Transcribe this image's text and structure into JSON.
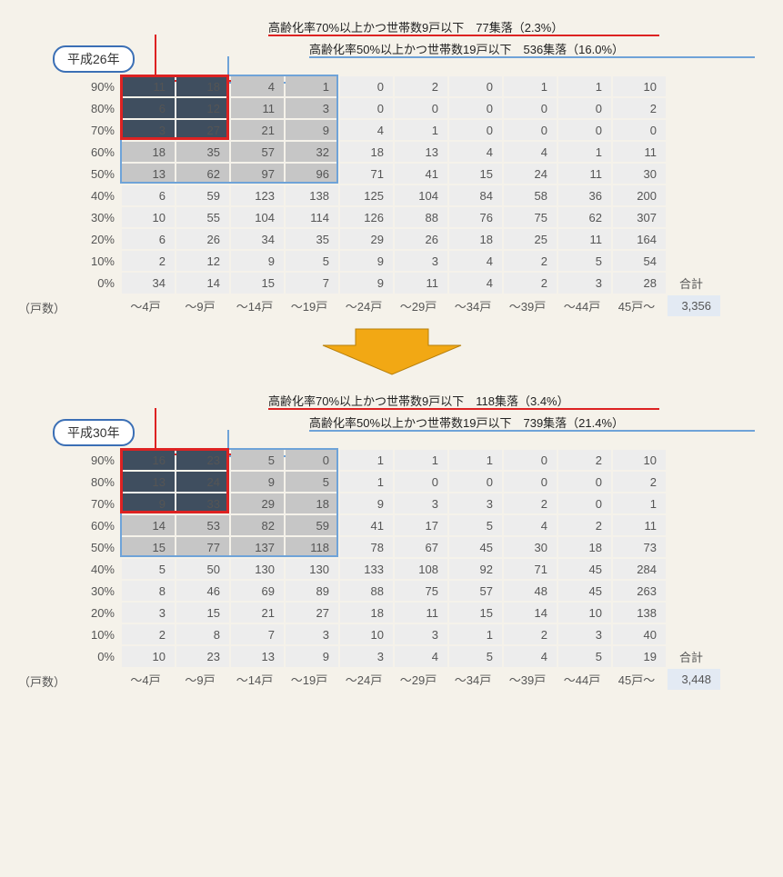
{
  "colors": {
    "page_bg": "#f5f2ea",
    "cell_light": "#ededed",
    "cell_mid": "#c6c6c6",
    "cell_dark": "#3f4e5f",
    "cell_dark_text": "#ffffff",
    "text": "#555555",
    "badge_border": "#3b6fb5",
    "red": "#d22222",
    "blue": "#6fa3d8",
    "total_bg": "#e3eaf3",
    "arrow_fill": "#f2a814",
    "arrow_stroke": "#b77f0a"
  },
  "shared": {
    "row_labels": [
      "90%",
      "80%",
      "70%",
      "60%",
      "50%",
      "40%",
      "30%",
      "20%",
      "10%",
      "0%"
    ],
    "col_labels": [
      "～4戸",
      "～9戸",
      "～14戸",
      "～19戸",
      "～24戸",
      "～29戸",
      "～34戸",
      "～39戸",
      "～44戸",
      "45戸～"
    ],
    "axis_label": "（戸数）",
    "total_label": "合計",
    "highlight_red": {
      "row_start": 0,
      "row_end": 2,
      "col_start": 0,
      "col_end": 1
    },
    "highlight_blue": {
      "row_start": 0,
      "row_end": 4,
      "col_start": 0,
      "col_end": 3
    }
  },
  "panels": [
    {
      "year": "平成26年",
      "annot_red": "高齢化率70%以上かつ世帯数9戸以下　77集落（2.3%）",
      "annot_blue": "高齢化率50%以上かつ世帯数19戸以下　536集落（16.0%）",
      "total": "3,356",
      "rows": [
        [
          11,
          18,
          4,
          1,
          0,
          2,
          0,
          1,
          1,
          10
        ],
        [
          6,
          12,
          11,
          3,
          0,
          0,
          0,
          0,
          0,
          2
        ],
        [
          3,
          27,
          21,
          9,
          4,
          1,
          0,
          0,
          0,
          0
        ],
        [
          18,
          35,
          57,
          32,
          18,
          13,
          4,
          4,
          1,
          11
        ],
        [
          13,
          62,
          97,
          96,
          71,
          41,
          15,
          24,
          11,
          30
        ],
        [
          6,
          59,
          123,
          138,
          125,
          104,
          84,
          58,
          36,
          200
        ],
        [
          10,
          55,
          104,
          114,
          126,
          88,
          76,
          75,
          62,
          307
        ],
        [
          6,
          26,
          34,
          35,
          29,
          26,
          18,
          25,
          11,
          164
        ],
        [
          2,
          12,
          9,
          5,
          9,
          3,
          4,
          2,
          5,
          54
        ],
        [
          34,
          14,
          15,
          7,
          9,
          11,
          4,
          2,
          3,
          28
        ]
      ],
      "shade": [
        [
          "d",
          "d",
          "m",
          "m",
          "l",
          "l",
          "l",
          "l",
          "l",
          "l"
        ],
        [
          "d",
          "d",
          "m",
          "m",
          "l",
          "l",
          "l",
          "l",
          "l",
          "l"
        ],
        [
          "d",
          "d",
          "m",
          "m",
          "l",
          "l",
          "l",
          "l",
          "l",
          "l"
        ],
        [
          "m",
          "m",
          "m",
          "m",
          "l",
          "l",
          "l",
          "l",
          "l",
          "l"
        ],
        [
          "m",
          "m",
          "m",
          "m",
          "l",
          "l",
          "l",
          "l",
          "l",
          "l"
        ],
        [
          "l",
          "l",
          "l",
          "l",
          "l",
          "l",
          "l",
          "l",
          "l",
          "l"
        ],
        [
          "l",
          "l",
          "l",
          "l",
          "l",
          "l",
          "l",
          "l",
          "l",
          "l"
        ],
        [
          "l",
          "l",
          "l",
          "l",
          "l",
          "l",
          "l",
          "l",
          "l",
          "l"
        ],
        [
          "l",
          "l",
          "l",
          "l",
          "l",
          "l",
          "l",
          "l",
          "l",
          "l"
        ],
        [
          "l",
          "l",
          "l",
          "l",
          "l",
          "l",
          "l",
          "l",
          "l",
          "l"
        ]
      ]
    },
    {
      "year": "平成30年",
      "annot_red": "高齢化率70%以上かつ世帯数9戸以下　118集落（3.4%）",
      "annot_blue": "高齢化率50%以上かつ世帯数19戸以下　739集落（21.4%）",
      "total": "3,448",
      "rows": [
        [
          16,
          23,
          5,
          0,
          1,
          1,
          1,
          0,
          2,
          10
        ],
        [
          13,
          24,
          9,
          5,
          1,
          0,
          0,
          0,
          0,
          2
        ],
        [
          9,
          33,
          29,
          18,
          9,
          3,
          3,
          2,
          0,
          1
        ],
        [
          14,
          53,
          82,
          59,
          41,
          17,
          5,
          4,
          2,
          11
        ],
        [
          15,
          77,
          137,
          118,
          78,
          67,
          45,
          30,
          18,
          73
        ],
        [
          5,
          50,
          130,
          130,
          133,
          108,
          92,
          71,
          45,
          284
        ],
        [
          8,
          46,
          69,
          89,
          88,
          75,
          57,
          48,
          45,
          263
        ],
        [
          3,
          15,
          21,
          27,
          18,
          11,
          15,
          14,
          10,
          138
        ],
        [
          2,
          8,
          7,
          3,
          10,
          3,
          1,
          2,
          3,
          40
        ],
        [
          10,
          23,
          13,
          9,
          3,
          4,
          5,
          4,
          5,
          19
        ]
      ],
      "shade": [
        [
          "d",
          "d",
          "m",
          "m",
          "l",
          "l",
          "l",
          "l",
          "l",
          "l"
        ],
        [
          "d",
          "d",
          "m",
          "m",
          "l",
          "l",
          "l",
          "l",
          "l",
          "l"
        ],
        [
          "d",
          "d",
          "m",
          "m",
          "l",
          "l",
          "l",
          "l",
          "l",
          "l"
        ],
        [
          "m",
          "m",
          "m",
          "m",
          "l",
          "l",
          "l",
          "l",
          "l",
          "l"
        ],
        [
          "m",
          "m",
          "m",
          "m",
          "l",
          "l",
          "l",
          "l",
          "l",
          "l"
        ],
        [
          "l",
          "l",
          "l",
          "l",
          "l",
          "l",
          "l",
          "l",
          "l",
          "l"
        ],
        [
          "l",
          "l",
          "l",
          "l",
          "l",
          "l",
          "l",
          "l",
          "l",
          "l"
        ],
        [
          "l",
          "l",
          "l",
          "l",
          "l",
          "l",
          "l",
          "l",
          "l",
          "l"
        ],
        [
          "l",
          "l",
          "l",
          "l",
          "l",
          "l",
          "l",
          "l",
          "l",
          "l"
        ],
        [
          "l",
          "l",
          "l",
          "l",
          "l",
          "l",
          "l",
          "l",
          "l",
          "l"
        ]
      ]
    }
  ]
}
